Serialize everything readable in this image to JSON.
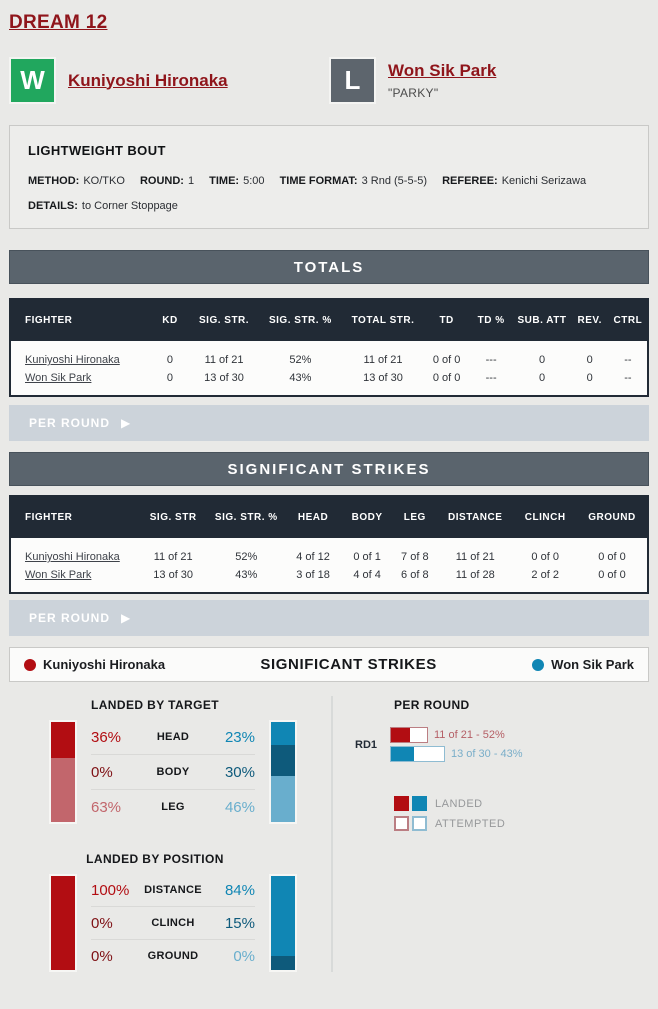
{
  "event": {
    "title": "DREAM 12"
  },
  "fight": {
    "red_corner": {
      "result": "W",
      "name": "Kuniyoshi Hironaka",
      "nickname": ""
    },
    "blue_corner": {
      "result": "L",
      "name": "Won Sik Park",
      "nickname": "\"PARKY\""
    }
  },
  "bout": {
    "weight_class": "LIGHTWEIGHT BOUT",
    "pairs": [
      {
        "label": "METHOD:",
        "value": "KO/TKO"
      },
      {
        "label": "ROUND:",
        "value": "1"
      },
      {
        "label": "TIME:",
        "value": "5:00"
      },
      {
        "label": "TIME FORMAT:",
        "value": "3 Rnd (5-5-5)"
      },
      {
        "label": "REFEREE:",
        "value": "Kenichi Serizawa"
      }
    ],
    "details": {
      "label": "DETAILS:",
      "value": "to Corner Stoppage"
    }
  },
  "totals": {
    "title": "TOTALS",
    "columns": [
      "FIGHTER",
      "KD",
      "SIG. STR.",
      "SIG. STR. %",
      "TOTAL STR.",
      "TD",
      "TD %",
      "SUB. ATT",
      "REV.",
      "CTRL"
    ],
    "rows": [
      {
        "fighter": "Kuniyoshi Hironaka",
        "values": [
          "0",
          "11 of 21",
          "52%",
          "11 of 21",
          "0 of 0",
          "---",
          "0",
          "0",
          "--"
        ]
      },
      {
        "fighter": "Won Sik Park",
        "values": [
          "0",
          "13 of 30",
          "43%",
          "13 of 30",
          "0 of 0",
          "---",
          "0",
          "0",
          "--"
        ]
      }
    ],
    "per_round_label": "PER ROUND"
  },
  "significant_strikes": {
    "title": "SIGNIFICANT STRIKES",
    "columns": [
      "FIGHTER",
      "SIG. STR",
      "SIG. STR. %",
      "HEAD",
      "BODY",
      "LEG",
      "DISTANCE",
      "CLINCH",
      "GROUND"
    ],
    "rows": [
      {
        "fighter": "Kuniyoshi Hironaka",
        "values": [
          "11 of 21",
          "52%",
          "4 of 12",
          "0 of 1",
          "7 of 8",
          "11 of 21",
          "0 of 0",
          "0 of 0"
        ]
      },
      {
        "fighter": "Won Sik Park",
        "values": [
          "13 of 30",
          "43%",
          "3 of 18",
          "4 of 4",
          "6 of 8",
          "11 of 28",
          "2 of 2",
          "0 of 0"
        ]
      }
    ],
    "per_round_label": "PER ROUND"
  },
  "charts_panel": {
    "title": "SIGNIFICANT STRIKES",
    "legend_red": "Kuniyoshi Hironaka",
    "legend_blue": "Won Sik Park",
    "landed_by_target": {
      "title": "LANDED BY TARGET",
      "rows": [
        {
          "red": "36%",
          "label": "HEAD",
          "blue": "23%"
        },
        {
          "red": "0%",
          "label": "BODY",
          "blue": "30%"
        },
        {
          "red": "63%",
          "label": "LEG",
          "blue": "46%"
        }
      ]
    },
    "landed_by_position": {
      "title": "LANDED BY POSITION",
      "rows": [
        {
          "red": "100%",
          "label": "DISTANCE",
          "blue": "84%"
        },
        {
          "red": "0%",
          "label": "CLINCH",
          "blue": "15%"
        },
        {
          "red": "0%",
          "label": "GROUND",
          "blue": "0%"
        }
      ]
    },
    "per_round": {
      "title": "PER ROUND",
      "round_label": "RD1",
      "red_label": "11 of 21 - 52%",
      "blue_label": "13 of 30 - 43%",
      "legend_landed": "LANDED",
      "legend_attempted": "ATTEMPTED"
    }
  },
  "chart_data": [
    {
      "type": "bar",
      "title": "LANDED BY TARGET",
      "categories": [
        "HEAD",
        "BODY",
        "LEG"
      ],
      "series": [
        {
          "name": "Kuniyoshi Hironaka",
          "values": [
            36,
            0,
            63
          ]
        },
        {
          "name": "Won Sik Park",
          "values": [
            23,
            30,
            46
          ]
        }
      ],
      "unit": "percent of landed significant strikes"
    },
    {
      "type": "bar",
      "title": "LANDED BY POSITION",
      "categories": [
        "DISTANCE",
        "CLINCH",
        "GROUND"
      ],
      "series": [
        {
          "name": "Kuniyoshi Hironaka",
          "values": [
            100,
            0,
            0
          ]
        },
        {
          "name": "Won Sik Park",
          "values": [
            84,
            15,
            0
          ]
        }
      ],
      "unit": "percent of landed significant strikes"
    },
    {
      "type": "bar",
      "title": "PER ROUND",
      "categories": [
        "RD1"
      ],
      "series": [
        {
          "name": "Kuniyoshi Hironaka",
          "landed": 11,
          "attempted": 21,
          "pct": 52
        },
        {
          "name": "Won Sik Park",
          "landed": 13,
          "attempted": 30,
          "pct": 43
        }
      ]
    }
  ],
  "colors": {
    "page_bg": "#e9e9e7",
    "link_red": "#8f151b",
    "win_green": "#21a75e",
    "loss_gray": "#5d656d",
    "section_header": "#5a646d",
    "table_header": "#212a35",
    "per_round_bar": "#ccd3da",
    "red_base": "#b20d12",
    "red_dark": "#7e1014",
    "red_light": "#c2666c",
    "blue_base": "#1086b4",
    "blue_dark": "#0e5a7b",
    "blue_light": "#69aecd"
  }
}
